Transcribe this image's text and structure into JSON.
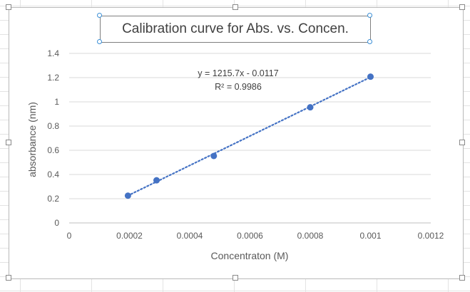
{
  "chart_data": {
    "type": "scatter",
    "title": "Calibration curve for Abs. vs. Concen.",
    "xlabel": "Concentraton (M)",
    "ylabel": "absorbance (nm)",
    "xlim": [
      0,
      0.0012
    ],
    "ylim": [
      0,
      1.4
    ],
    "x_ticks": [
      "0",
      "0.0002",
      "0.0004",
      "0.0006",
      "0.0008",
      "0.001",
      "0.0012"
    ],
    "y_ticks": [
      "0",
      "0.2",
      "0.4",
      "0.6",
      "0.8",
      "1",
      "1.2",
      "1.4"
    ],
    "grid": true,
    "points": [
      {
        "x": 0.000195,
        "y": 0.225
      },
      {
        "x": 0.00029,
        "y": 0.352
      },
      {
        "x": 0.00048,
        "y": 0.553
      },
      {
        "x": 0.0008,
        "y": 0.955
      },
      {
        "x": 0.001,
        "y": 1.208
      }
    ],
    "trendline": {
      "type": "linear",
      "slope": 1215.7,
      "intercept": -0.0117,
      "x_range": [
        0.000195,
        0.001
      ],
      "equation": "y = 1215.7x - 0.0117",
      "r_squared": "R² = 0.9986"
    },
    "colors": {
      "marker": "#4472c4",
      "trendline": "#4472c4",
      "grid": "#d9d9d9",
      "text": "#595959"
    }
  }
}
